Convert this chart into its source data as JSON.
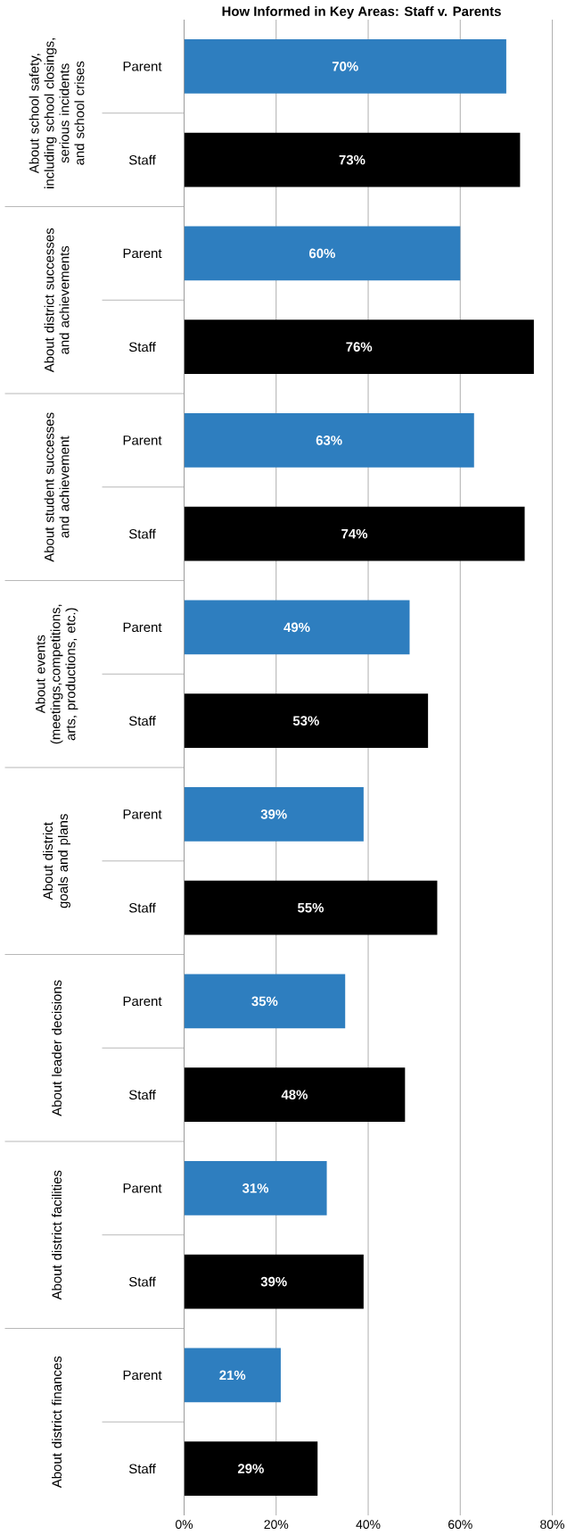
{
  "chart_data": {
    "type": "bar",
    "orientation": "horizontal",
    "title": "How Informed in Key Areas: Staff v. Parents",
    "categories": [
      "About school safety, including school closings, serious incidents and school crises",
      "About district successes and achievements",
      "About student successes and achievement",
      "About events (meetings,competitions, arts, productions, etc.)",
      "About district goals and plans",
      "About leader decisions",
      "About district facilities",
      "About district finances"
    ],
    "series": [
      {
        "name": "Parent",
        "color": "#2e7ebf",
        "values": [
          70,
          60,
          63,
          49,
          39,
          35,
          31,
          21
        ],
        "value_labels": [
          "70%",
          "60%",
          "63%",
          "49%",
          "39%",
          "35%",
          "31%",
          "21%"
        ]
      },
      {
        "name": "Staff",
        "color": "#000000",
        "values": [
          73,
          76,
          74,
          53,
          55,
          48,
          39,
          29
        ],
        "value_labels": [
          "73%",
          "76%",
          "74%",
          "53%",
          "55%",
          "48%",
          "39%",
          "29%"
        ]
      }
    ],
    "xlim": [
      0,
      80
    ],
    "xticks": [
      {
        "value": 0,
        "label": "0%"
      },
      {
        "value": 20,
        "label": "20%"
      },
      {
        "value": 40,
        "label": "40%"
      },
      {
        "value": 60,
        "label": "60%"
      },
      {
        "value": 80,
        "label": "80%"
      }
    ],
    "grid": "x"
  }
}
